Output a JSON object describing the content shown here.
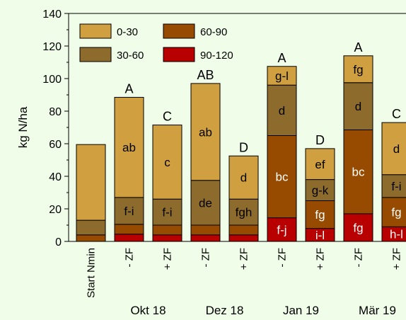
{
  "chart_data": {
    "type": "bar",
    "stacked": true,
    "title": "",
    "xlabel": "",
    "ylabel": "kg N/ha",
    "ylim": [
      0,
      140
    ],
    "yticks": [
      0,
      20,
      40,
      60,
      80,
      100,
      120,
      140
    ],
    "grid": false,
    "legend_position": "top-left",
    "categories": [
      "Start Nmin",
      "- ZF",
      "+ ZF",
      "- ZF",
      "+ ZF",
      "- ZF",
      "+ ZF",
      "- ZF",
      "+ ZF"
    ],
    "groups": [
      {
        "label": "Okt 18",
        "categories": [
          1,
          2
        ]
      },
      {
        "label": "Dez 18",
        "categories": [
          3,
          4
        ]
      },
      {
        "label": "Jan 19",
        "categories": [
          5,
          6
        ]
      },
      {
        "label": "Mär 19",
        "categories": [
          7,
          8
        ]
      }
    ],
    "series": [
      {
        "name": "90-120",
        "color": "#b80000",
        "values": [
          0,
          4.5,
          4,
          4,
          4,
          14.5,
          8,
          17,
          9
        ],
        "labels": [
          "",
          "",
          "",
          "",
          "",
          "f-j",
          "i-l",
          "fg",
          "h-l"
        ]
      },
      {
        "name": "60-90",
        "color": "#964b00",
        "values": [
          4,
          6,
          6,
          6,
          6,
          50.5,
          17,
          51.5,
          18
        ],
        "labels": [
          "",
          "",
          "",
          "",
          "",
          "bc",
          "fg",
          "bc",
          "fg"
        ]
      },
      {
        "name": "30-60",
        "color": "#8c6b2d",
        "values": [
          9,
          16.5,
          16,
          27.5,
          16,
          31,
          13,
          29,
          14
        ],
        "labels": [
          "",
          "f-i",
          "f-i",
          "de",
          "fgh",
          "d",
          "g-k",
          "d",
          "f-i"
        ]
      },
      {
        "name": "0-30",
        "color": "#d0a040",
        "values": [
          46.5,
          61.5,
          45.5,
          59.5,
          26.5,
          11.5,
          19,
          16.5,
          32
        ],
        "labels": [
          "",
          "ab",
          "c",
          "ab",
          "d",
          "g-l",
          "ef",
          "fg",
          "d"
        ]
      }
    ],
    "totals_letters": [
      "",
      "A",
      "C",
      "AB",
      "D",
      "A",
      "D",
      "A",
      "C"
    ],
    "legend_order": [
      "0-30",
      "60-90",
      "30-60",
      "90-120"
    ]
  }
}
